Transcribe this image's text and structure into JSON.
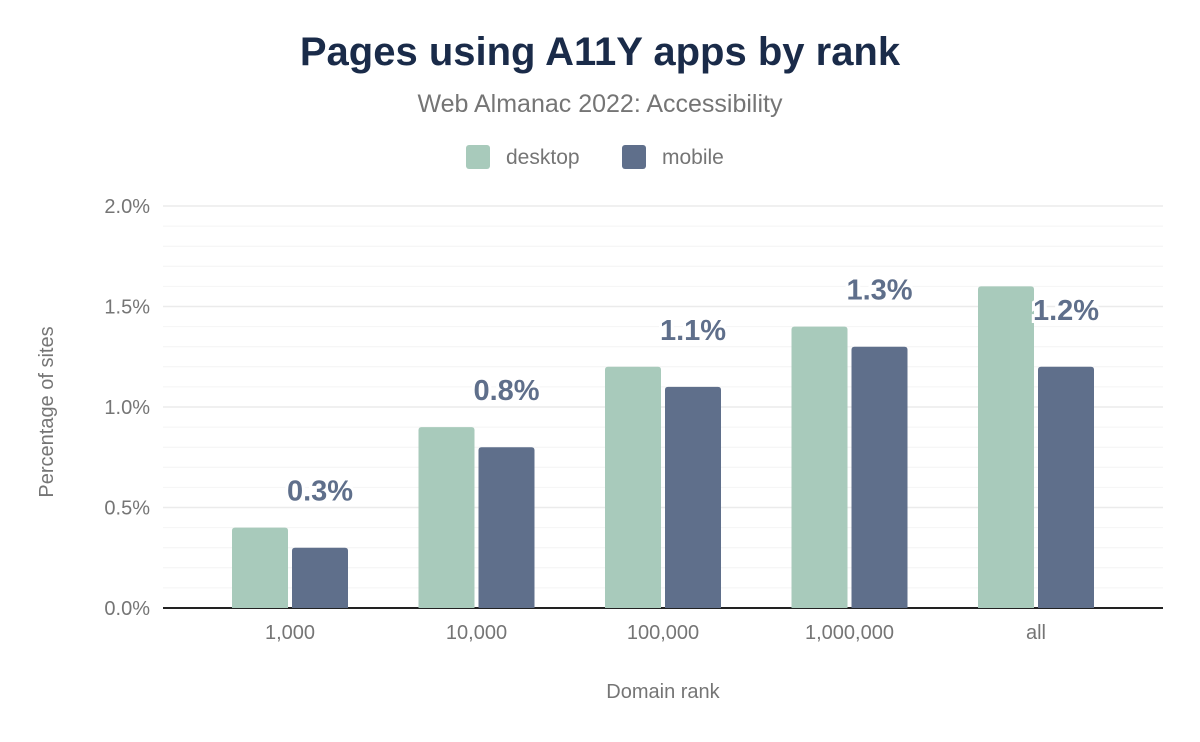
{
  "chart_data": {
    "type": "bar",
    "title": "Pages using A11Y apps by rank",
    "subtitle": "Web Almanac 2022: Accessibility",
    "xlabel": "Domain rank",
    "ylabel": "Percentage of sites",
    "categories": [
      "1,000",
      "10,000",
      "100,000",
      "1,000,000",
      "all"
    ],
    "series": [
      {
        "name": "desktop",
        "color": "#a8cabb",
        "values": [
          0.4,
          0.9,
          1.2,
          1.4,
          1.6
        ],
        "show_labels": false
      },
      {
        "name": "mobile",
        "color": "#5f6f8b",
        "values": [
          0.3,
          0.8,
          1.1,
          1.3,
          1.2
        ],
        "show_labels": true
      }
    ],
    "ylim": [
      0,
      2.0
    ],
    "yticks": [
      "0.0%",
      "0.5%",
      "1.0%",
      "1.5%",
      "2.0%"
    ],
    "grid": true,
    "legend": "top-center"
  }
}
